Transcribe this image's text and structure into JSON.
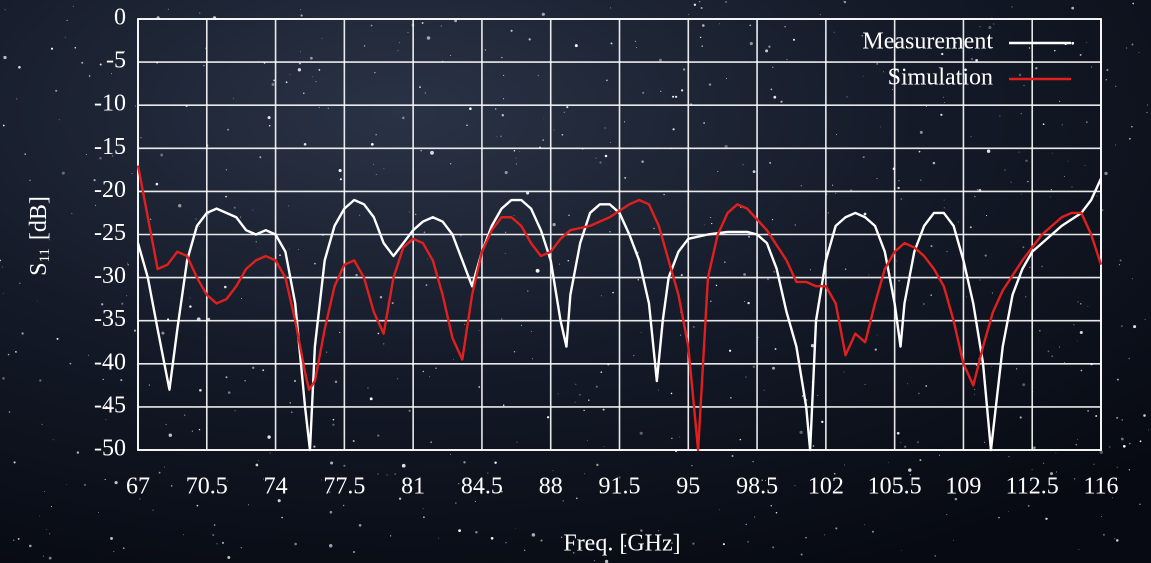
{
  "chart_data": {
    "type": "line",
    "xlabel": "Freq. [GHz]",
    "ylabel": [
      "S",
      "11",
      "[dB]"
    ],
    "xlim": [
      67,
      116
    ],
    "ylim": [
      -50,
      0
    ],
    "xticks": [
      67,
      70.5,
      74,
      77.5,
      81,
      84.5,
      88,
      91.5,
      95,
      98.5,
      102,
      105.5,
      109,
      112.5,
      116
    ],
    "yticks": [
      0,
      -5,
      -10,
      -15,
      -20,
      -25,
      -30,
      -35,
      -40,
      -45,
      -50
    ],
    "grid": true,
    "legend": "upper right",
    "series": [
      {
        "name": "Measurement",
        "color": "#ffffff",
        "x": [
          67,
          67.5,
          68,
          68.6,
          69,
          69.5,
          70,
          70.5,
          71,
          72,
          72.5,
          73,
          73.5,
          74,
          74.5,
          75,
          75.5,
          75.75,
          76,
          76.5,
          77,
          77.5,
          78,
          78.5,
          79,
          79.5,
          80,
          80.5,
          81,
          81.5,
          82,
          82.5,
          83,
          83.5,
          84,
          84.5,
          85,
          85.5,
          86,
          86.5,
          87,
          87.5,
          88,
          88.5,
          88.8,
          89,
          89.5,
          90,
          90.5,
          91,
          91.5,
          92,
          92.5,
          93,
          93.4,
          93.7,
          94,
          94.5,
          95,
          96,
          97,
          98,
          98.5,
          99,
          99.5,
          100,
          100.5,
          101,
          101.2,
          101.5,
          102,
          102.5,
          103,
          103.5,
          104,
          104.5,
          105,
          105.5,
          105.8,
          106,
          106.5,
          107,
          107.5,
          108,
          108.5,
          109,
          109.5,
          110,
          110.4,
          111,
          111.5,
          112,
          112.5,
          113,
          114,
          115,
          115.5,
          116
        ],
        "values": [
          -26,
          -30,
          -36,
          -43,
          -36,
          -28,
          -24,
          -22.5,
          -22,
          -23,
          -24.5,
          -25,
          -24.5,
          -25,
          -27,
          -33,
          -45,
          -50,
          -38,
          -28,
          -24,
          -22,
          -21,
          -21.5,
          -23,
          -26,
          -27.5,
          -26,
          -24.5,
          -23.5,
          -23,
          -23.5,
          -25,
          -28,
          -31,
          -27,
          -24,
          -22,
          -21,
          -21,
          -22,
          -24.5,
          -28,
          -35,
          -38,
          -32,
          -26,
          -22.5,
          -21.5,
          -21.5,
          -22.5,
          -25,
          -28,
          -33,
          -42,
          -35,
          -30,
          -27,
          -25.5,
          -25,
          -24.7,
          -24.7,
          -25,
          -26,
          -29,
          -34,
          -38,
          -45,
          -50,
          -35,
          -28,
          -24,
          -23,
          -22.5,
          -23,
          -24,
          -27,
          -33,
          -38,
          -33,
          -27,
          -24,
          -22.5,
          -22.5,
          -24,
          -28,
          -33,
          -40,
          -50,
          -38,
          -32,
          -29,
          -27,
          -26,
          -24,
          -22.5,
          -21,
          -18.5
        ]
      },
      {
        "name": "Simulation",
        "color": "#e0201e",
        "x": [
          67,
          67.5,
          68,
          68.5,
          69,
          69.5,
          70,
          70.5,
          71,
          71.5,
          72,
          72.5,
          73,
          73.5,
          74,
          74.5,
          75,
          75.5,
          75.7,
          76,
          76.5,
          77,
          77.5,
          78,
          78.5,
          79,
          79.5,
          80,
          80.5,
          81,
          81.5,
          82,
          82.5,
          83,
          83.5,
          84,
          84.5,
          85,
          85.5,
          86,
          86.5,
          87,
          87.5,
          88,
          88.5,
          89,
          90,
          91,
          92,
          92.5,
          93,
          93.5,
          94,
          94.5,
          95,
          95.5,
          95.8,
          96,
          96.5,
          97,
          97.5,
          98,
          99,
          100,
          100.5,
          101,
          101.5,
          102,
          102.5,
          103,
          103.5,
          104,
          104.5,
          105,
          105.5,
          106,
          106.5,
          107,
          107.5,
          108,
          108.5,
          109,
          109.5,
          110,
          110.5,
          111,
          112,
          113,
          114,
          114.5,
          115,
          115.5,
          116
        ],
        "values": [
          -17,
          -23,
          -29,
          -28.5,
          -27,
          -27.5,
          -30,
          -32,
          -33,
          -32.5,
          -31,
          -29,
          -28,
          -27.5,
          -28,
          -30,
          -35,
          -41,
          -43,
          -42,
          -36,
          -31,
          -28.5,
          -28,
          -30,
          -34,
          -36.5,
          -30,
          -26.5,
          -25.5,
          -26,
          -28,
          -32,
          -37,
          -39.5,
          -32,
          -27,
          -24.5,
          -23,
          -23,
          -24,
          -26,
          -27.5,
          -27,
          -25.5,
          -24.5,
          -24,
          -23,
          -21.5,
          -21,
          -21.5,
          -24,
          -28,
          -32,
          -38,
          -50,
          -38,
          -30,
          -25,
          -22.5,
          -21.5,
          -22,
          -24.5,
          -28,
          -30.5,
          -30.5,
          -31,
          -31,
          -33,
          -39,
          -36.5,
          -37.5,
          -33,
          -29,
          -27,
          -26,
          -26.5,
          -27.5,
          -29,
          -31,
          -35,
          -40,
          -42.5,
          -38,
          -34,
          -31.5,
          -28,
          -25,
          -23,
          -22.5,
          -22.5,
          -25,
          -28.5
        ]
      }
    ]
  }
}
